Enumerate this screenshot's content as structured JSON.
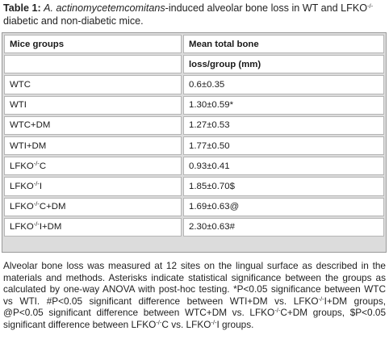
{
  "caption": {
    "label": "Table 1:",
    "species": "A. actinomycetemcomitans",
    "text_before_sup": "-induced alveolar bone loss in WT and LFKO",
    "sup": "-/-",
    "text_after_sup": " diabetic and non-diabetic mice."
  },
  "table": {
    "headers": {
      "group": "Mice groups",
      "value_line1": "Mean total bone",
      "value_line2": "loss/group (mm)"
    },
    "rows": [
      {
        "prefix": "WTC",
        "sup": "",
        "suffix": "",
        "value": "0.6±0.35"
      },
      {
        "prefix": "WTI",
        "sup": "",
        "suffix": "",
        "value": "1.30±0.59*"
      },
      {
        "prefix": "WTC+DM",
        "sup": "",
        "suffix": "",
        "value": "1.27±0.53"
      },
      {
        "prefix": "WTI+DM",
        "sup": "",
        "suffix": "",
        "value": "1.77±0.50"
      },
      {
        "prefix": "LFKO",
        "sup": "-/-",
        "suffix": "C",
        "value": "0.93±0.41"
      },
      {
        "prefix": "LFKO",
        "sup": "-/-",
        "suffix": "I",
        "value": "1.85±0.70$"
      },
      {
        "prefix": "LFKO",
        "sup": "-/-",
        "suffix": "C+DM",
        "value": "1.69±0.63@"
      },
      {
        "prefix": "LFKO",
        "sup": "-/-",
        "suffix": "I+DM",
        "value": "2.30±0.63#"
      }
    ]
  },
  "footnote": {
    "part1": "Alveolar bone loss was measured at 12 sites on the lingual surface as described in the materials and methods. Asterisks indicate statistical significance between the groups as calculated by one-way ANOVA with post-hoc testing. *P<0.05 significance between WTC vs WTI. #P<0.05 significant difference between WTI+DM vs. LFKO",
    "sup1": "-/-",
    "part2": "I+DM groups, @P<0.05 significant difference between WTC+DM vs. LFKO",
    "sup2": "-/-",
    "part3": "C+DM groups, $P<0.05 significant difference between LFKO",
    "sup3": "-/-",
    "part4": "C vs. LFKO",
    "sup4": "-/-",
    "part5": "I groups."
  }
}
